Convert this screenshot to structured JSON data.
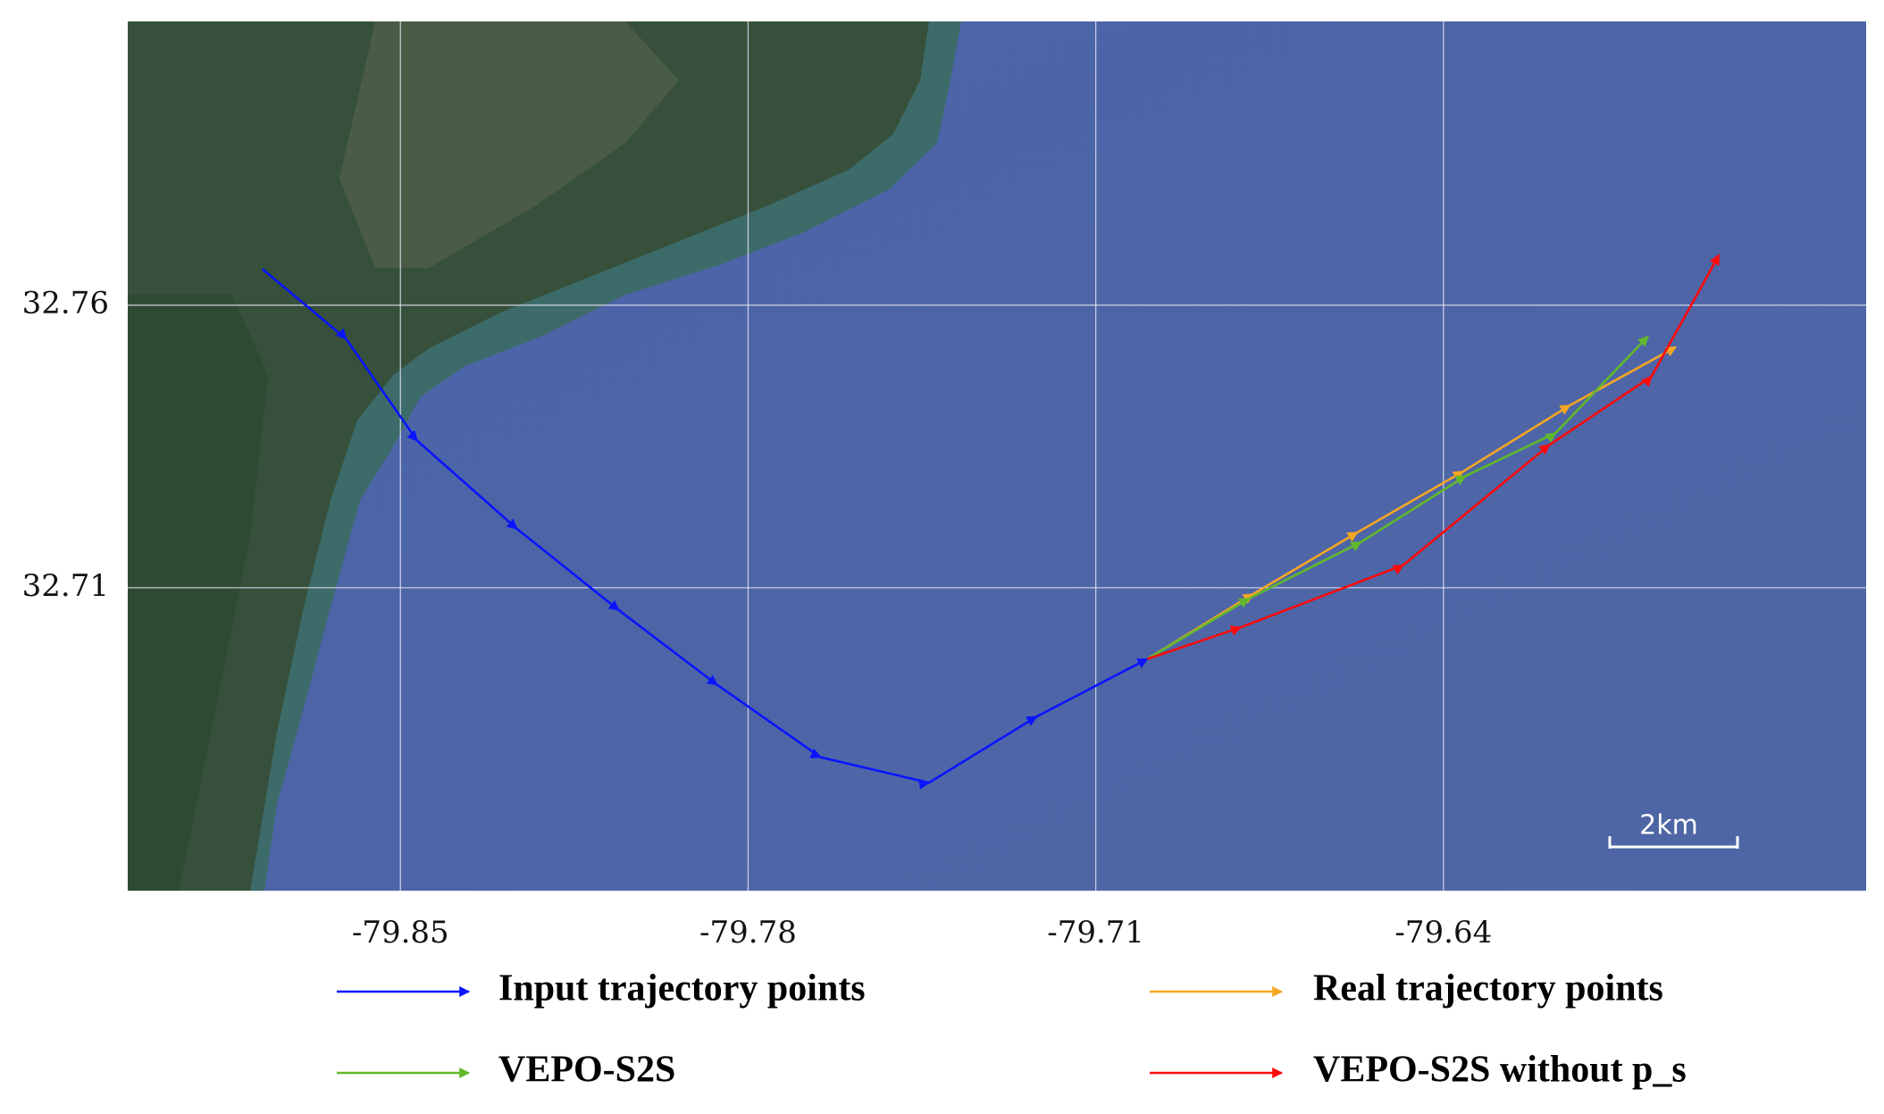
{
  "chart_data": {
    "type": "line",
    "xlim": [
      -79.9049,
      -79.5549
    ],
    "ylim": [
      32.6564,
      32.8102
    ],
    "xticks": [
      -79.85,
      -79.78,
      -79.71,
      -79.64
    ],
    "yticks": [
      32.76,
      32.71
    ],
    "grid": true,
    "scale_bar": "2km",
    "series": [
      {
        "name": "Input trajectory points",
        "color": "#0a14ff",
        "x": [
          -79.8778,
          -79.8609,
          -79.8466,
          -79.8265,
          -79.806,
          -79.7862,
          -79.7654,
          -79.7436,
          -79.7219,
          -79.6996
        ],
        "values": [
          32.7664,
          32.754,
          32.736,
          32.7204,
          32.706,
          32.6928,
          32.68,
          32.6755,
          32.6872,
          32.6974
        ]
      },
      {
        "name": "Real trajectory points",
        "color": "#f5a623",
        "x": [
          -79.6996,
          -79.6783,
          -79.6573,
          -79.636,
          -79.6145,
          -79.5932
        ],
        "values": [
          32.6974,
          32.7089,
          32.7198,
          32.7306,
          32.7423,
          32.7526
        ]
      },
      {
        "name": "VEPO-S2S",
        "color": "#62b82c",
        "x": [
          -79.6996,
          -79.6791,
          -79.6566,
          -79.6355,
          -79.6174,
          -79.5988
        ],
        "values": [
          32.6974,
          32.7081,
          32.7181,
          32.7298,
          32.7374,
          32.7545
        ]
      },
      {
        "name": "VEPO-S2S without p_s",
        "color": "#ff0a0a",
        "x": [
          -79.6996,
          -79.6808,
          -79.6481,
          -79.6186,
          -79.5981,
          -79.5845
        ],
        "values": [
          32.6974,
          32.703,
          32.714,
          32.7353,
          32.7474,
          32.7689
        ]
      }
    ]
  }
}
